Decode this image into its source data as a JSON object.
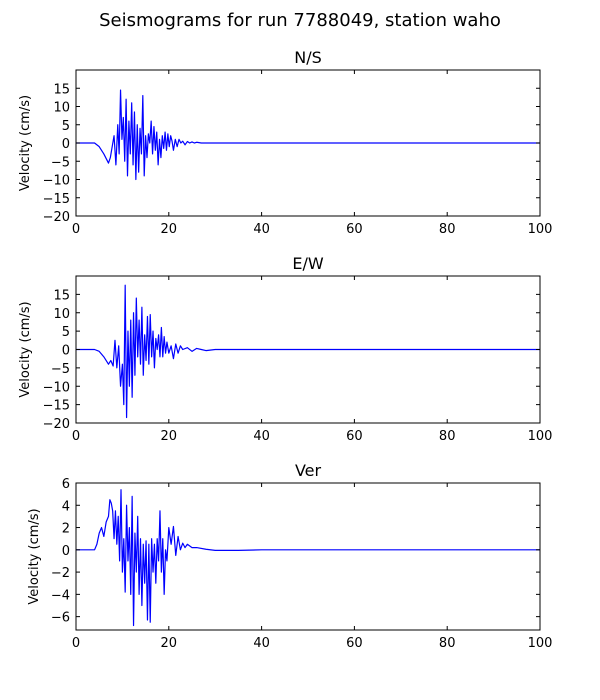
{
  "figure": {
    "suptitle": "Seismograms for run 7788049, station waho"
  },
  "chart_data": [
    {
      "type": "line",
      "title": "N/S",
      "xlabel": "",
      "ylabel": "Velocity (cm/s)",
      "xlim": [
        0,
        100
      ],
      "ylim": [
        -20,
        20
      ],
      "xticks": [
        0,
        20,
        40,
        60,
        80,
        100
      ],
      "yticks": [
        -20,
        -15,
        -10,
        -5,
        0,
        5,
        10,
        15
      ],
      "line_color": "#0000ff",
      "grid": false,
      "series": [
        {
          "x": [
            0,
            4,
            5,
            6,
            7,
            7.4,
            7.8,
            8.2,
            8.6,
            9.0,
            9.3,
            9.6,
            9.9,
            10.2,
            10.5,
            10.8,
            11.1,
            11.4,
            11.7,
            12.0,
            12.3,
            12.6,
            12.9,
            13.2,
            13.5,
            13.8,
            14.1,
            14.4,
            14.7,
            15.0,
            15.3,
            15.6,
            15.9,
            16.2,
            16.5,
            16.8,
            17.1,
            17.4,
            17.7,
            18.0,
            18.3,
            18.6,
            18.9,
            19.2,
            19.5,
            19.8,
            20.1,
            20.4,
            20.7,
            21.0,
            21.4,
            21.8,
            22.2,
            22.6,
            23.0,
            23.5,
            24.0,
            24.5,
            25.0,
            25.5,
            26.0,
            27.0,
            28.0,
            29.0,
            30.0,
            40.0,
            60.0,
            80.0,
            100.0
          ],
          "y": [
            0,
            0,
            -1,
            -3,
            -5.5,
            -4,
            -1,
            2,
            -6,
            5,
            -3,
            14.5,
            1,
            7,
            -5,
            12,
            -9,
            6,
            -3,
            11,
            -6,
            8.5,
            -10,
            5,
            -8,
            4,
            -3,
            13,
            -9,
            2,
            -4,
            2.5,
            0,
            6,
            -3,
            4.5,
            -2,
            3,
            -6,
            1,
            -4,
            2,
            -1.5,
            3,
            -2,
            2.5,
            -1,
            2,
            0.5,
            -2,
            1,
            -1,
            1,
            0,
            0.5,
            -0.5,
            0.4,
            0,
            0.3,
            0,
            0.2,
            0,
            0,
            0,
            0,
            0,
            0,
            0,
            0
          ]
        }
      ]
    },
    {
      "type": "line",
      "title": "E/W",
      "xlabel": "",
      "ylabel": "Velocity (cm/s)",
      "xlim": [
        0,
        100
      ],
      "ylim": [
        -20,
        20
      ],
      "xticks": [
        0,
        20,
        40,
        60,
        80,
        100
      ],
      "yticks": [
        -20,
        -15,
        -10,
        -5,
        0,
        5,
        10,
        15
      ],
      "line_color": "#0000ff",
      "grid": false,
      "series": [
        {
          "x": [
            0,
            4,
            5,
            6,
            7,
            7.5,
            8,
            8.4,
            8.8,
            9.2,
            9.6,
            10.0,
            10.3,
            10.6,
            10.9,
            11.2,
            11.5,
            11.8,
            12.1,
            12.4,
            12.7,
            13.0,
            13.3,
            13.6,
            13.9,
            14.2,
            14.5,
            14.8,
            15.1,
            15.4,
            15.7,
            16.0,
            16.3,
            16.6,
            16.9,
            17.2,
            17.5,
            17.8,
            18.1,
            18.4,
            18.7,
            19.0,
            19.3,
            19.6,
            20.0,
            20.5,
            21.0,
            21.5,
            22.0,
            22.5,
            23.0,
            24.0,
            25.0,
            26.0,
            27.0,
            28.0,
            30.0,
            40.0,
            60.0,
            80.0,
            100.0
          ],
          "y": [
            0,
            0,
            -0.5,
            -2,
            -4,
            -3,
            -4.5,
            2.5,
            -5,
            1,
            -10,
            -4,
            -15,
            17.5,
            -18.5,
            5,
            -10,
            8,
            -13,
            10,
            -7,
            14,
            -2,
            8,
            -4,
            11.5,
            -7,
            4,
            -3,
            9,
            -4,
            9.5,
            -2,
            5,
            -5,
            3,
            0,
            4,
            -2,
            6,
            -2,
            3.5,
            -1,
            2,
            -1,
            1,
            -2.5,
            1.5,
            -1,
            1,
            0,
            0.5,
            -0.5,
            0.3,
            0,
            -0.3,
            0,
            0,
            0,
            0,
            0
          ]
        }
      ]
    },
    {
      "type": "line",
      "title": "Ver",
      "xlabel": "",
      "ylabel": "Velocity (cm/s)",
      "xlim": [
        0,
        100
      ],
      "ylim": [
        -7.2,
        6
      ],
      "xticks": [
        0,
        20,
        40,
        60,
        80,
        100
      ],
      "yticks": [
        -6,
        -4,
        -2,
        0,
        2,
        4,
        6
      ],
      "line_color": "#0000ff",
      "grid": false,
      "series": [
        {
          "x": [
            0,
            4,
            4.5,
            5,
            5.5,
            6,
            6.5,
            7,
            7.3,
            7.6,
            7.9,
            8.2,
            8.5,
            8.8,
            9.1,
            9.4,
            9.7,
            10.0,
            10.3,
            10.6,
            10.9,
            11.2,
            11.5,
            11.8,
            12.1,
            12.4,
            12.7,
            13.0,
            13.3,
            13.6,
            13.9,
            14.2,
            14.5,
            14.8,
            15.1,
            15.4,
            15.7,
            16.0,
            16.3,
            16.6,
            16.9,
            17.2,
            17.5,
            17.8,
            18.1,
            18.4,
            18.7,
            19.0,
            19.3,
            19.6,
            20.0,
            20.5,
            21.0,
            21.5,
            22.0,
            22.5,
            23.0,
            23.5,
            24.0,
            25.0,
            26.0,
            28.0,
            30.0,
            32.0,
            35.0,
            40.0,
            60.0,
            80.0,
            100.0
          ],
          "y": [
            0,
            0,
            0.5,
            1.5,
            2.0,
            1.2,
            2.5,
            3.0,
            4.5,
            4.2,
            3.5,
            1,
            3.5,
            0.5,
            3,
            -1,
            5.4,
            -2,
            1,
            -3.8,
            4,
            -1,
            2,
            -4,
            4.8,
            -6.8,
            1.5,
            -2,
            3,
            -4,
            1,
            -5,
            0.5,
            -3,
            0.8,
            -6.3,
            0.5,
            -6.5,
            1,
            -2,
            0.5,
            -3,
            1,
            -1,
            3.5,
            -2,
            1,
            -4,
            0,
            -1,
            2,
            0.5,
            2.1,
            -0.5,
            1.2,
            0,
            0.6,
            0.2,
            0.5,
            0.2,
            0.2,
            0.05,
            -0.05,
            -0.05,
            -0.05,
            0,
            0,
            0,
            0
          ]
        }
      ]
    }
  ]
}
